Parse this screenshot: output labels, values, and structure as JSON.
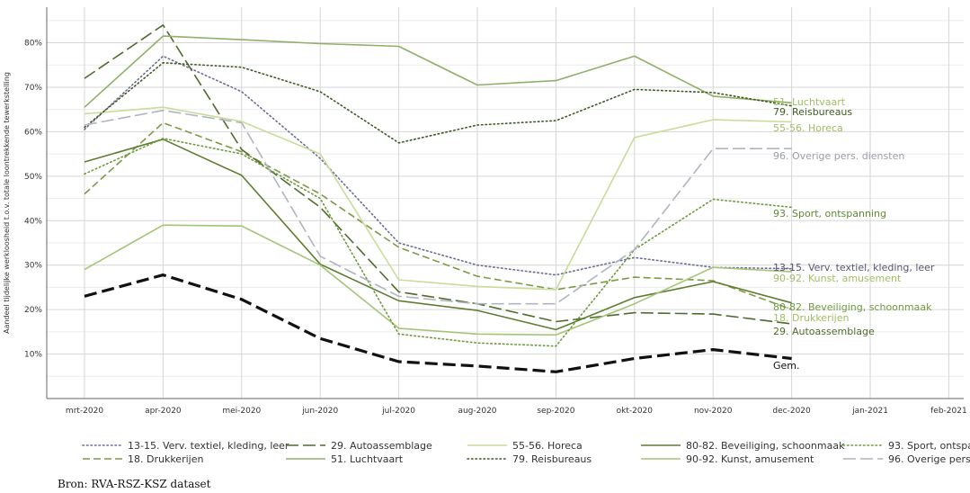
{
  "chart_data": {
    "type": "line",
    "ylabel": "Aandeel tijdelijke werkloosheid t.o.v. totale loontrekkende tewerkstelling",
    "xlabel": "",
    "categories": [
      "mrt-2020",
      "apr-2020",
      "mei-2020",
      "jun-2020",
      "jul-2020",
      "aug-2020",
      "sep-2020",
      "okt-2020",
      "nov-2020",
      "dec-2020",
      "jan-2021",
      "feb-2021"
    ],
    "ylim": [
      0,
      88
    ],
    "yticks": [
      10,
      20,
      30,
      40,
      50,
      60,
      70,
      80
    ],
    "ytick_labels": [
      "10%",
      "20%",
      "30%",
      "40%",
      "50%",
      "60%",
      "70%",
      "80%"
    ],
    "grid": true,
    "legend_position": "bottom",
    "series": [
      {
        "name": "13-15. Verv. textiel, kleding, leer",
        "end_label": "13-15. Verv. textiel, kleding, leer",
        "color": "#6b6b96",
        "style": "dotted",
        "width": 1.6,
        "values": [
          60.5,
          77,
          69,
          54,
          35,
          30,
          27.8,
          31.7,
          29.5,
          29.2,
          null,
          null
        ]
      },
      {
        "name": "18. Drukkerijen",
        "end_label": "18. Drukkerijen",
        "color": "#7d9a46",
        "style": "dashed",
        "width": 1.6,
        "values": [
          46,
          62,
          55.5,
          46,
          34,
          27.5,
          24.5,
          27.3,
          26.5,
          20,
          null,
          null
        ]
      },
      {
        "name": "29. Autoassemblage",
        "end_label": "29. Autoassemblage",
        "color": "#4f6b2e",
        "style": "longdash",
        "width": 1.6,
        "values": [
          72,
          84,
          56,
          43,
          24,
          21.3,
          17.3,
          19.3,
          19,
          16.8,
          null,
          null
        ]
      },
      {
        "name": "51. Luchtvaart",
        "end_label": "51. Luchtvaart",
        "color": "#8fb06a",
        "style": "solid",
        "width": 1.6,
        "values": [
          65.5,
          81.5,
          80.7,
          79.8,
          79.2,
          70.5,
          71.5,
          77,
          68,
          66.5,
          null,
          null
        ]
      },
      {
        "name": "55-56. Horeca",
        "end_label": "55-56. Horeca",
        "color": "#c9dc9a",
        "style": "solid",
        "width": 1.6,
        "values": [
          64,
          65.5,
          62.3,
          55,
          26.7,
          25.2,
          24.5,
          58.7,
          62.7,
          62.2,
          null,
          null
        ]
      },
      {
        "name": "79. Reisbureaus",
        "end_label": "79. Reisbureaus",
        "color": "#3f5a25",
        "style": "dotted",
        "width": 1.6,
        "values": [
          61,
          75.5,
          74.5,
          69,
          57.5,
          61.5,
          62.5,
          69.5,
          68.8,
          65.8,
          null,
          null
        ]
      },
      {
        "name": "80-82. Beveiliging, schoonmaak",
        "end_label": "80-82. Beveiliging, schoonmaak",
        "color": "#5e7d33",
        "style": "solid",
        "width": 1.6,
        "values": [
          53.2,
          58.3,
          50.2,
          30.2,
          22,
          19.8,
          15.5,
          22.7,
          26.3,
          21.5,
          null,
          null
        ]
      },
      {
        "name": "90-92. Kunst, amusement",
        "end_label": "90-92. Kunst, amusement",
        "color": "#a4c477",
        "style": "solid",
        "width": 1.6,
        "values": [
          29,
          39,
          38.8,
          30,
          15.8,
          14.5,
          14.3,
          21.3,
          29.5,
          28.5,
          null,
          null
        ]
      },
      {
        "name": "93. Sport, ontspanning",
        "end_label": "93. Sport, ontspanning",
        "color": "#6c9b3c",
        "style": "dotted",
        "width": 1.6,
        "values": [
          50.5,
          58.5,
          55,
          45,
          14.5,
          12.5,
          11.8,
          33.5,
          44.8,
          43,
          null,
          null
        ]
      },
      {
        "name": "96. Overige pers. diensten",
        "end_label": "96. Overige pers. diensten",
        "color": "#b0b4bf",
        "style": "longdash",
        "width": 1.6,
        "values": [
          61.5,
          64.8,
          62,
          32,
          23,
          21.3,
          21.3,
          33.5,
          56.2,
          56.2,
          null,
          null
        ]
      },
      {
        "name": "Gem.",
        "end_label": "Gem.",
        "legend": false,
        "color": "#111111",
        "style": "thickdash",
        "width": 3.2,
        "values": [
          23,
          27.8,
          22.3,
          13.5,
          8.3,
          7.3,
          6,
          9,
          11,
          9,
          null,
          null
        ]
      }
    ]
  },
  "source_text": "Bron: RVA-RSZ-KSZ dataset"
}
